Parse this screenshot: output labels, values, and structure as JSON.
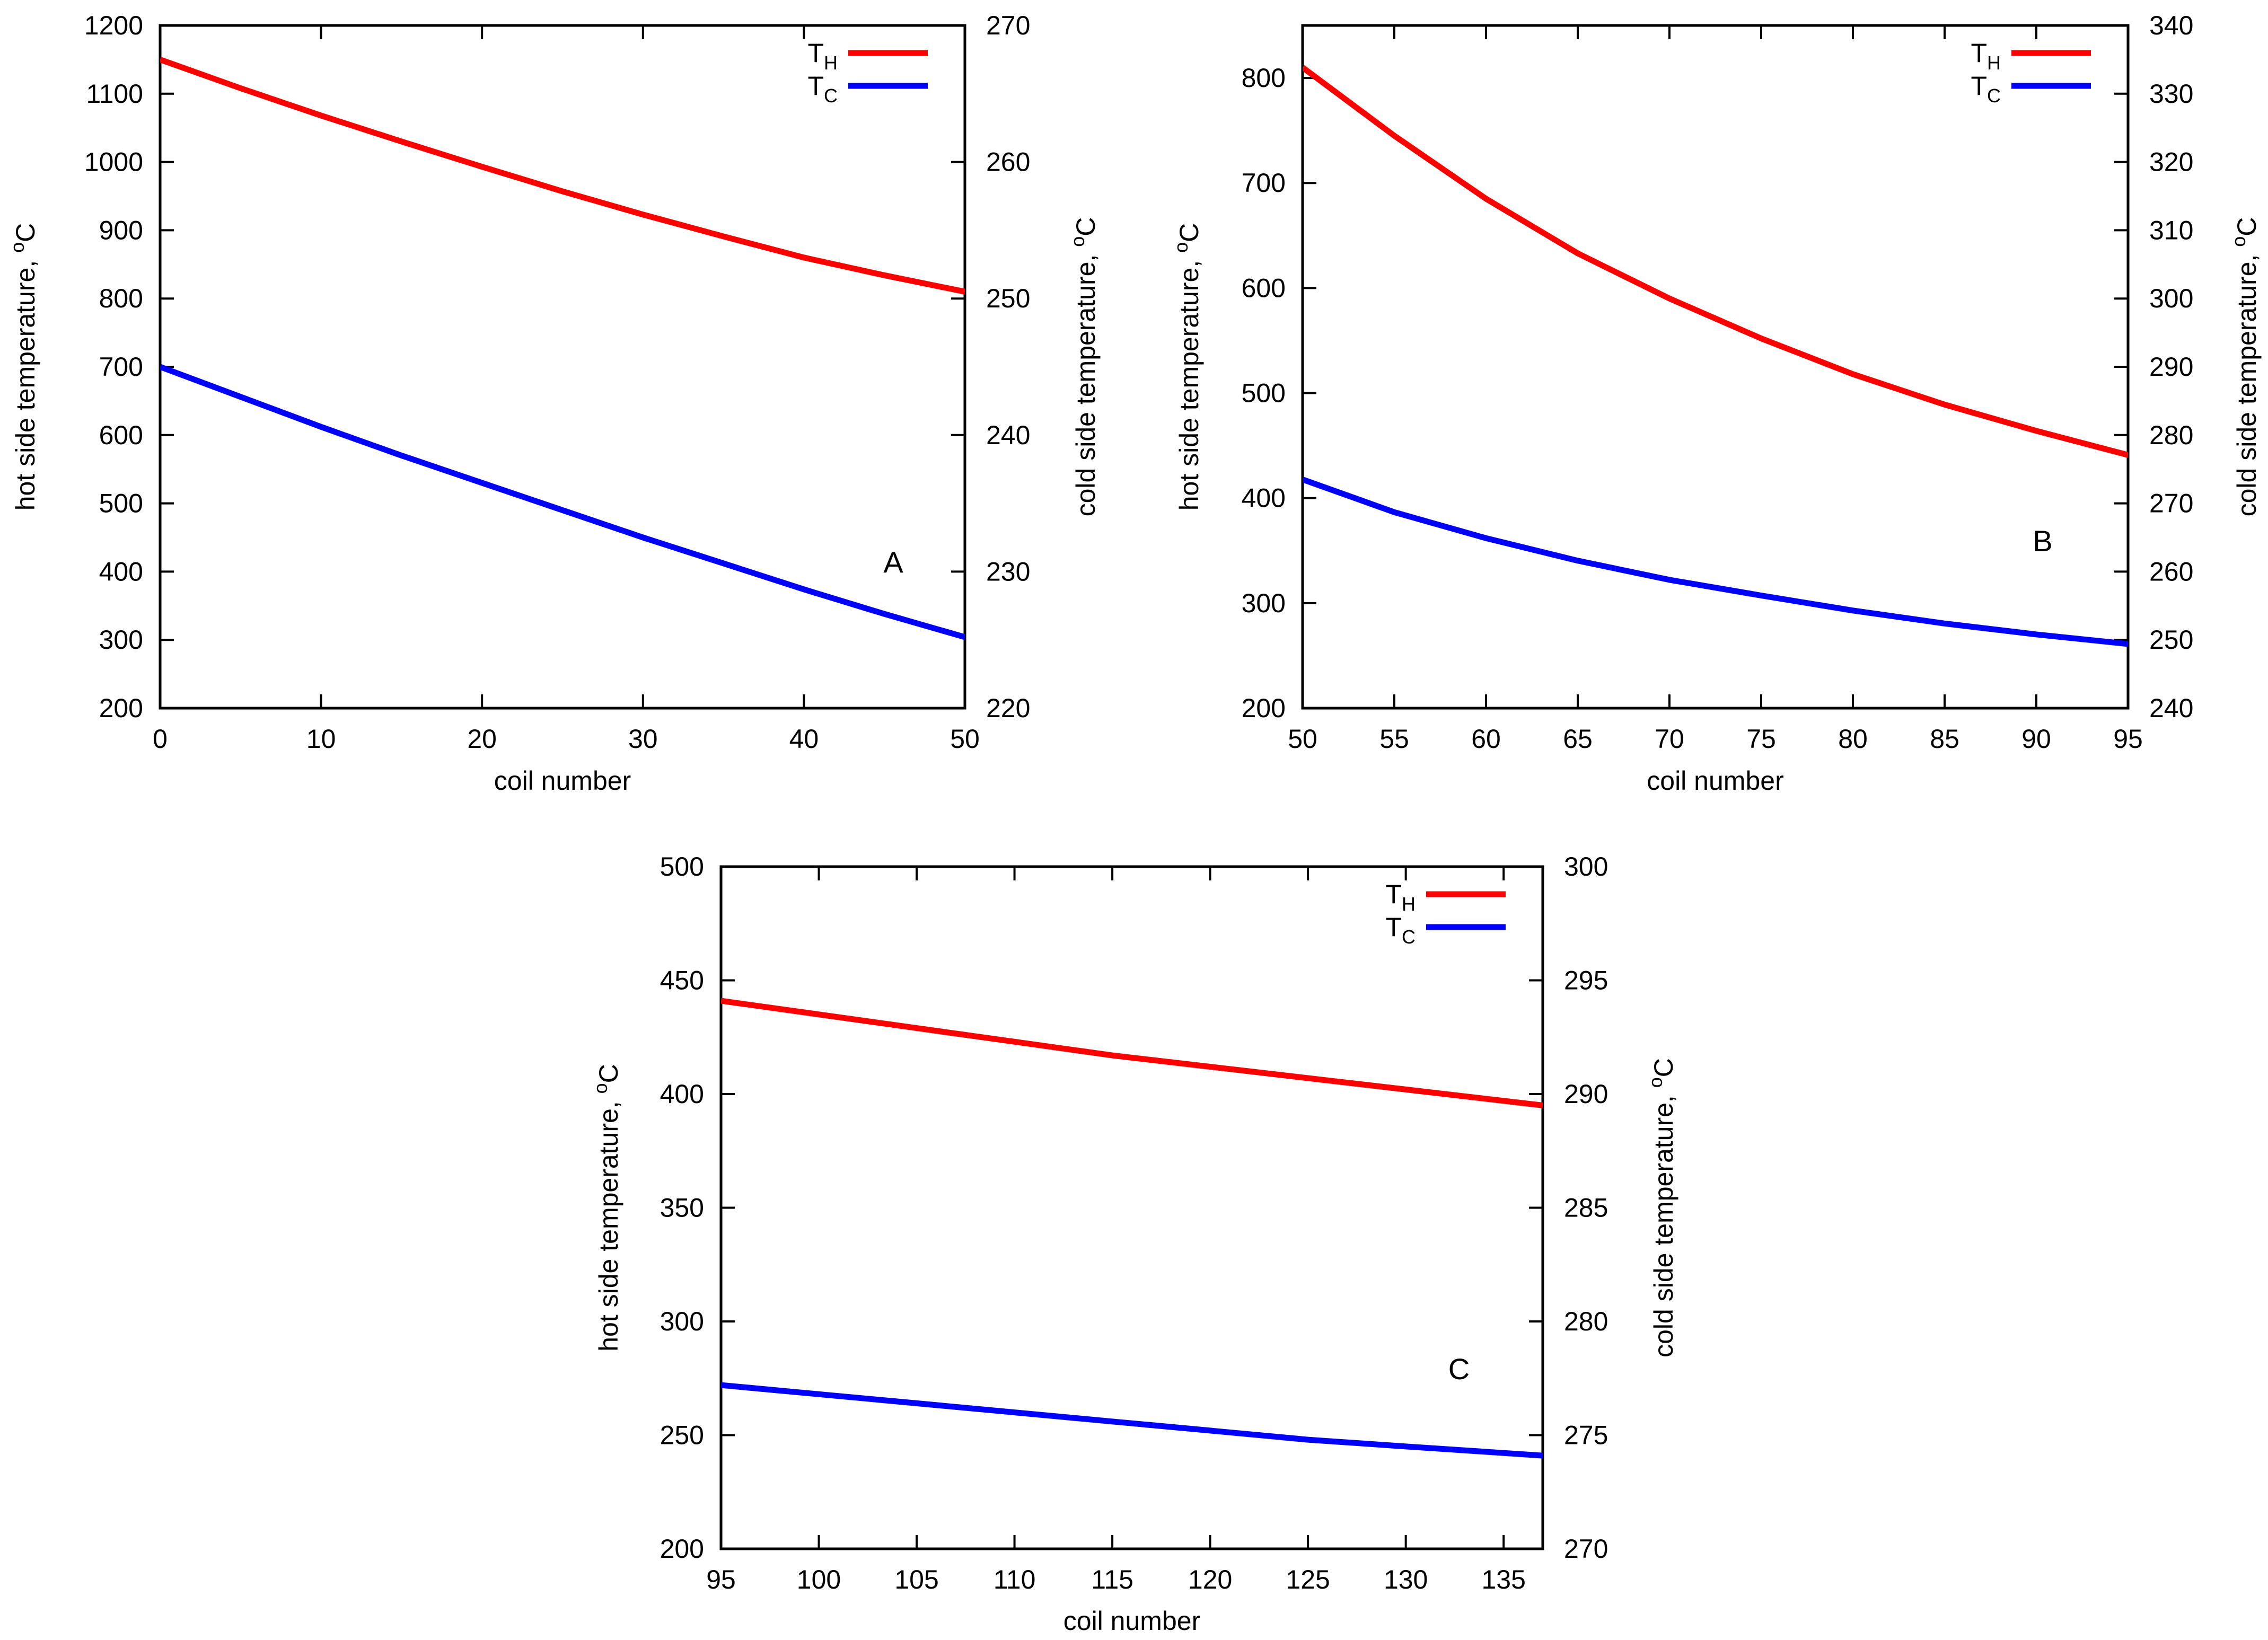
{
  "chart_data": [
    {
      "type": "line",
      "panel_label": "A",
      "xlabel": "coil number",
      "ylabel": "hot side temperature, ",
      "y2label": "cold side temperature, ",
      "unit_sup": "o",
      "unit": "C",
      "xlim": [
        0,
        50
      ],
      "ylim": [
        200,
        1200
      ],
      "y2lim": [
        220,
        270
      ],
      "xticks": [
        0,
        10,
        20,
        30,
        40,
        50
      ],
      "yticks": [
        200,
        300,
        400,
        500,
        600,
        700,
        800,
        900,
        1000,
        1100,
        1200
      ],
      "y2ticks": [
        220,
        230,
        240,
        250,
        260,
        270
      ],
      "grid": false,
      "legend_position": "top-right",
      "series": [
        {
          "name": "T",
          "subscript": "H",
          "color": "#ff0000",
          "axis": "left",
          "x": [
            0,
            5,
            10,
            15,
            20,
            25,
            30,
            35,
            40,
            45,
            50
          ],
          "y": [
            1150,
            1108,
            1068,
            1030,
            993,
            957,
            923,
            891,
            860,
            834,
            810
          ]
        },
        {
          "name": "T",
          "subscript": "C",
          "color": "#0000ff",
          "axis": "right",
          "x": [
            0,
            5,
            10,
            15,
            20,
            25,
            30,
            35,
            40,
            45,
            50
          ],
          "y": [
            245.0,
            242.8,
            240.6,
            238.5,
            236.5,
            234.5,
            232.5,
            230.6,
            228.7,
            226.9,
            225.2
          ]
        }
      ]
    },
    {
      "type": "line",
      "panel_label": "B",
      "xlabel": "coil number",
      "ylabel": "hot side temperature, ",
      "y2label": "cold side temperature, ",
      "unit_sup": "o",
      "unit": "C",
      "xlim": [
        50,
        95
      ],
      "ylim": [
        200,
        850
      ],
      "y2lim": [
        240,
        340
      ],
      "xticks": [
        50,
        55,
        60,
        65,
        70,
        75,
        80,
        85,
        90,
        95
      ],
      "yticks": [
        200,
        300,
        400,
        500,
        600,
        700,
        800
      ],
      "y2ticks": [
        240,
        250,
        260,
        270,
        280,
        290,
        300,
        310,
        320,
        330,
        340
      ],
      "grid": false,
      "legend_position": "top-right",
      "series": [
        {
          "name": "T",
          "subscript": "H",
          "color": "#ff0000",
          "axis": "left",
          "x": [
            50,
            55,
            60,
            65,
            70,
            75,
            80,
            85,
            90,
            95
          ],
          "y": [
            810,
            745,
            685,
            633,
            590,
            552,
            518,
            489,
            464,
            441
          ]
        },
        {
          "name": "T",
          "subscript": "C",
          "color": "#0000ff",
          "axis": "right",
          "x": [
            50,
            55,
            60,
            65,
            70,
            75,
            80,
            85,
            90,
            95
          ],
          "y": [
            273.5,
            268.7,
            264.9,
            261.6,
            258.8,
            256.5,
            254.3,
            252.4,
            250.8,
            249.4
          ]
        }
      ]
    },
    {
      "type": "line",
      "panel_label": "C",
      "xlabel": "coil number",
      "ylabel": "hot side temperature, ",
      "y2label": "cold side temperature, ",
      "unit_sup": "o",
      "unit": "C",
      "xlim": [
        95,
        137
      ],
      "ylim": [
        200,
        500
      ],
      "y2lim": [
        270,
        300
      ],
      "xticks": [
        95,
        100,
        105,
        110,
        115,
        120,
        125,
        130,
        135
      ],
      "yticks": [
        200,
        250,
        300,
        350,
        400,
        450,
        500
      ],
      "y2ticks": [
        270,
        275,
        280,
        285,
        290,
        295,
        300
      ],
      "grid": false,
      "legend_position": "top-right",
      "series": [
        {
          "name": "T",
          "subscript": "H",
          "color": "#ff0000",
          "axis": "left",
          "x": [
            95,
            100,
            105,
            110,
            115,
            120,
            125,
            130,
            137
          ],
          "y": [
            441,
            435,
            429,
            423,
            417,
            412,
            407,
            402,
            395
          ]
        },
        {
          "name": "T",
          "subscript": "C",
          "color": "#0000ff",
          "axis": "right",
          "x": [
            95,
            100,
            105,
            110,
            115,
            120,
            125,
            130,
            137
          ],
          "y": [
            277.2,
            276.8,
            276.4,
            276.0,
            275.6,
            275.2,
            274.8,
            274.5,
            274.1
          ]
        }
      ]
    }
  ]
}
